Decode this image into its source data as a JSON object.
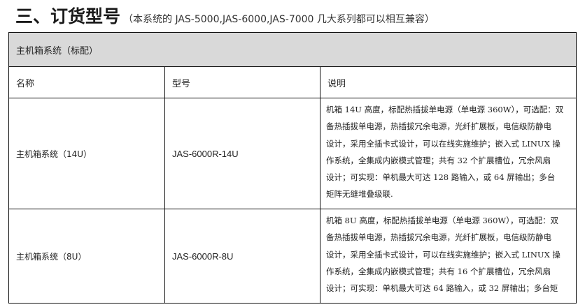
{
  "heading": {
    "title": "三、订货型号",
    "subtitle": "（本系统的 JAS-5000,JAS-6000,JAS-7000 几大系列都可以相互兼容）"
  },
  "table": {
    "section": "主机箱系统（标配）",
    "headers": [
      "名称",
      "型号",
      "说明"
    ],
    "rows": [
      {
        "name": "主机箱系统（14U）",
        "model": "JAS-6000R-14U",
        "desc": [
          "机箱 14U 高度，标配热插拔单电源（单电源 360W），可选配：双",
          "备热插拔单电源，热插拔冗余电源，光纤扩展板，电信级防静电",
          "设计，采用全插卡式设计，可以在线实施维护；嵌入式 LINUX 操",
          "作系统，全集成内嵌模式管理；共有 32 个扩展槽位，冗余风扇",
          "设计；可实现：单机最大可达 128 路输入，或 64 屏输出；多台",
          "矩阵无缝堆叠级联."
        ]
      },
      {
        "name": "主机箱系统（8U）",
        "model": "JAS-6000R-8U",
        "desc": [
          "机箱 8U 高度，标配热插拔单电源（单电源 360W），可选配：双",
          "备热插拔单电源，热插拔冗余电源，光纤扩展板，电信级防静电",
          "设计，采用全插卡式设计，可以在线实施维护；嵌入式 LINUX 操",
          "作系统，全集成内嵌模式管理；共有 16 个扩展槽位，冗余风扇",
          "设计；可实现：单机最大可达 64 路输入，或 32 屏输出；多台矩"
        ]
      }
    ]
  }
}
